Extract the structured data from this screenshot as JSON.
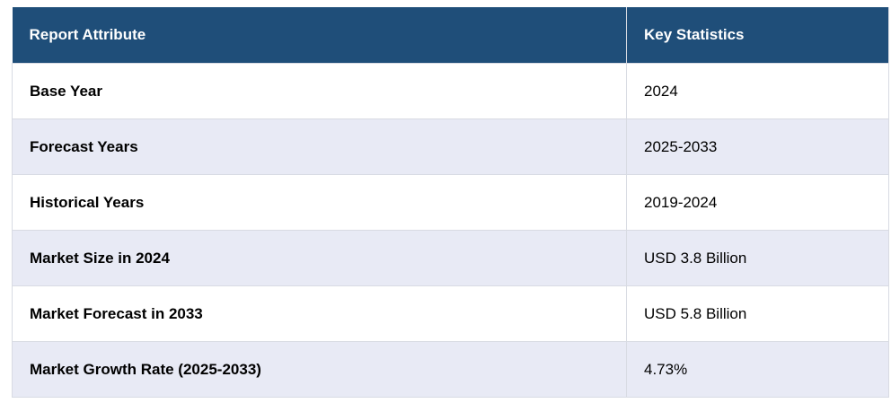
{
  "table": {
    "header": [
      "Report Attribute",
      "Key Statistics"
    ],
    "rows": [
      [
        "Base Year",
        "2024"
      ],
      [
        "Forecast Years",
        "2025-2033"
      ],
      [
        "Historical Years",
        "2019-2024"
      ],
      [
        "Market Size in 2024",
        "USD 3.8 Billion"
      ],
      [
        "Market Forecast in 2033",
        "USD 5.8 Billion"
      ],
      [
        "Market Growth Rate (2025-2033)",
        "4.73%"
      ]
    ]
  }
}
